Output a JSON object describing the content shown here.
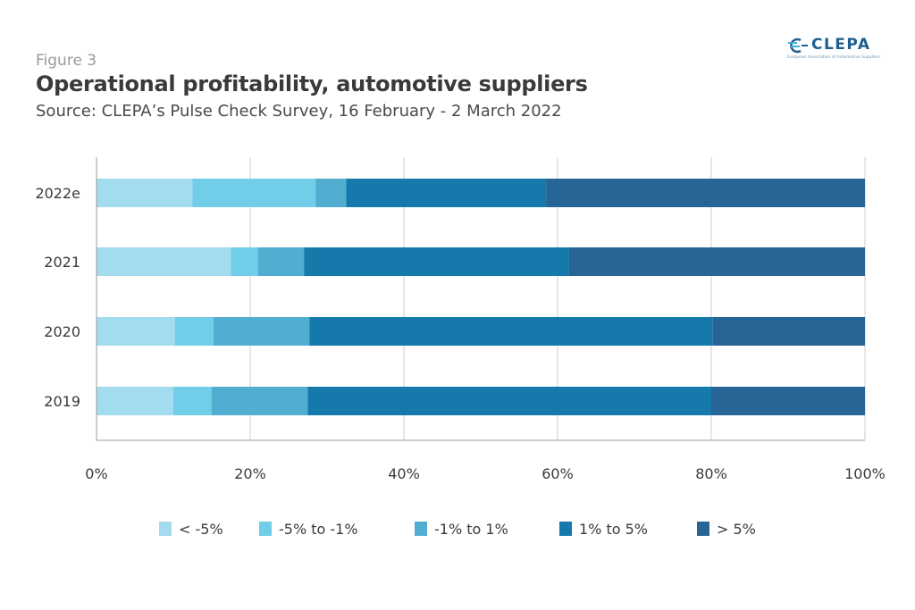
{
  "header": {
    "figure_label": "Figure 3",
    "title": "Operational profitability, automotive suppliers",
    "subtitle": "Source: CLEPA’s Pulse Check Survey,  16 February - 2 March 2022"
  },
  "logo": {
    "name": "CLEPA",
    "tagline": "European Association of Automotive Suppliers",
    "icon": "clepa-logo-mark"
  },
  "colors": {
    "lt_minus5": "#a3dbef",
    "minus5_to_minus1": "#72cde9",
    "minus1_to_1": "#52aed0",
    "1_to_5": "#157aab",
    "gt_5": "#266596",
    "grid": "#cfcfcf",
    "axis": "#9a9a9a"
  },
  "chart_data": {
    "type": "bar",
    "orientation": "horizontal",
    "stacked": true,
    "percent": true,
    "categories": [
      "2022e",
      "2021",
      "2020",
      "2019"
    ],
    "series": [
      {
        "name": "< -5%",
        "color_key": "lt_minus5",
        "values": [
          12.5,
          17.5,
          10.2,
          10.0
        ]
      },
      {
        "name": "-5% to -1%",
        "color_key": "minus5_to_minus1",
        "values": [
          16.0,
          3.5,
          5.0,
          5.0
        ]
      },
      {
        "name": "-1% to 1%",
        "color_key": "minus1_to_1",
        "values": [
          4.0,
          6.0,
          12.5,
          12.5
        ]
      },
      {
        "name": "1% to 5%",
        "color_key": "1_to_5",
        "values": [
          26.0,
          34.5,
          52.5,
          52.5
        ]
      },
      {
        "name": "> 5%",
        "color_key": "gt_5",
        "values": [
          41.5,
          38.5,
          19.8,
          20.0
        ]
      }
    ],
    "xlim": [
      0,
      100
    ],
    "x_ticks": [
      "0%",
      "20%",
      "40%",
      "60%",
      "80%",
      "100%"
    ],
    "x_tick_values": [
      0,
      20,
      40,
      60,
      80,
      100
    ],
    "grid": true,
    "legend_position": "bottom"
  }
}
